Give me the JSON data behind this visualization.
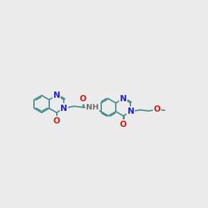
{
  "bg_color": "#ebebeb",
  "bond_color": "#4a9090",
  "n_color": "#2020cc",
  "o_color": "#cc2020",
  "h_color": "#707070",
  "bond_width": 1.4,
  "font_size_atom": 8.5,
  "fig_width": 3.0,
  "fig_height": 3.0,
  "dpi": 100,
  "xlim": [
    0,
    10
  ],
  "ylim": [
    3.0,
    7.0
  ]
}
